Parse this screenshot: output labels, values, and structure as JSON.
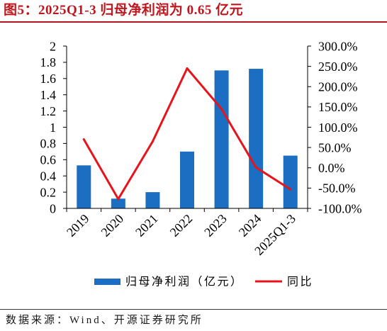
{
  "figure": {
    "title": "图5：2025Q1-3 归母净利润为 0.65 亿元",
    "source": "数据来源：Wind、开源证券研究所"
  },
  "colors": {
    "title": "#c0151c",
    "title_rule": "#b3141b",
    "bar": "#1b6ec2",
    "line": "#e8131b",
    "axis": "#000000"
  },
  "chart_data": {
    "type": "bar",
    "categories": [
      "2019",
      "2020",
      "2021",
      "2022",
      "2023",
      "2024",
      "2025Q1-3"
    ],
    "series": [
      {
        "name": "归母净利润（亿元）",
        "type": "bar",
        "axis": "left",
        "values": [
          0.53,
          0.12,
          0.2,
          0.7,
          1.7,
          1.72,
          0.65
        ]
      },
      {
        "name": "同比",
        "type": "line",
        "axis": "right",
        "values": [
          70,
          -77,
          65,
          245,
          145,
          1,
          -53
        ]
      }
    ],
    "y_left": {
      "min": 0,
      "max": 2,
      "tick_labels": [
        "0",
        "0.2",
        "0.4",
        "0.6",
        "0.8",
        "1",
        "1.2",
        "1.4",
        "1.6",
        "1.8",
        "2"
      ]
    },
    "y_right": {
      "min": -100,
      "max": 300,
      "tick_labels": [
        "-100.0%",
        "-50.0%",
        "0.0%",
        "50.0%",
        "100.0%",
        "150.0%",
        "200.0%",
        "250.0%",
        "300.0%"
      ]
    },
    "grid": false,
    "legend": "bottom"
  }
}
